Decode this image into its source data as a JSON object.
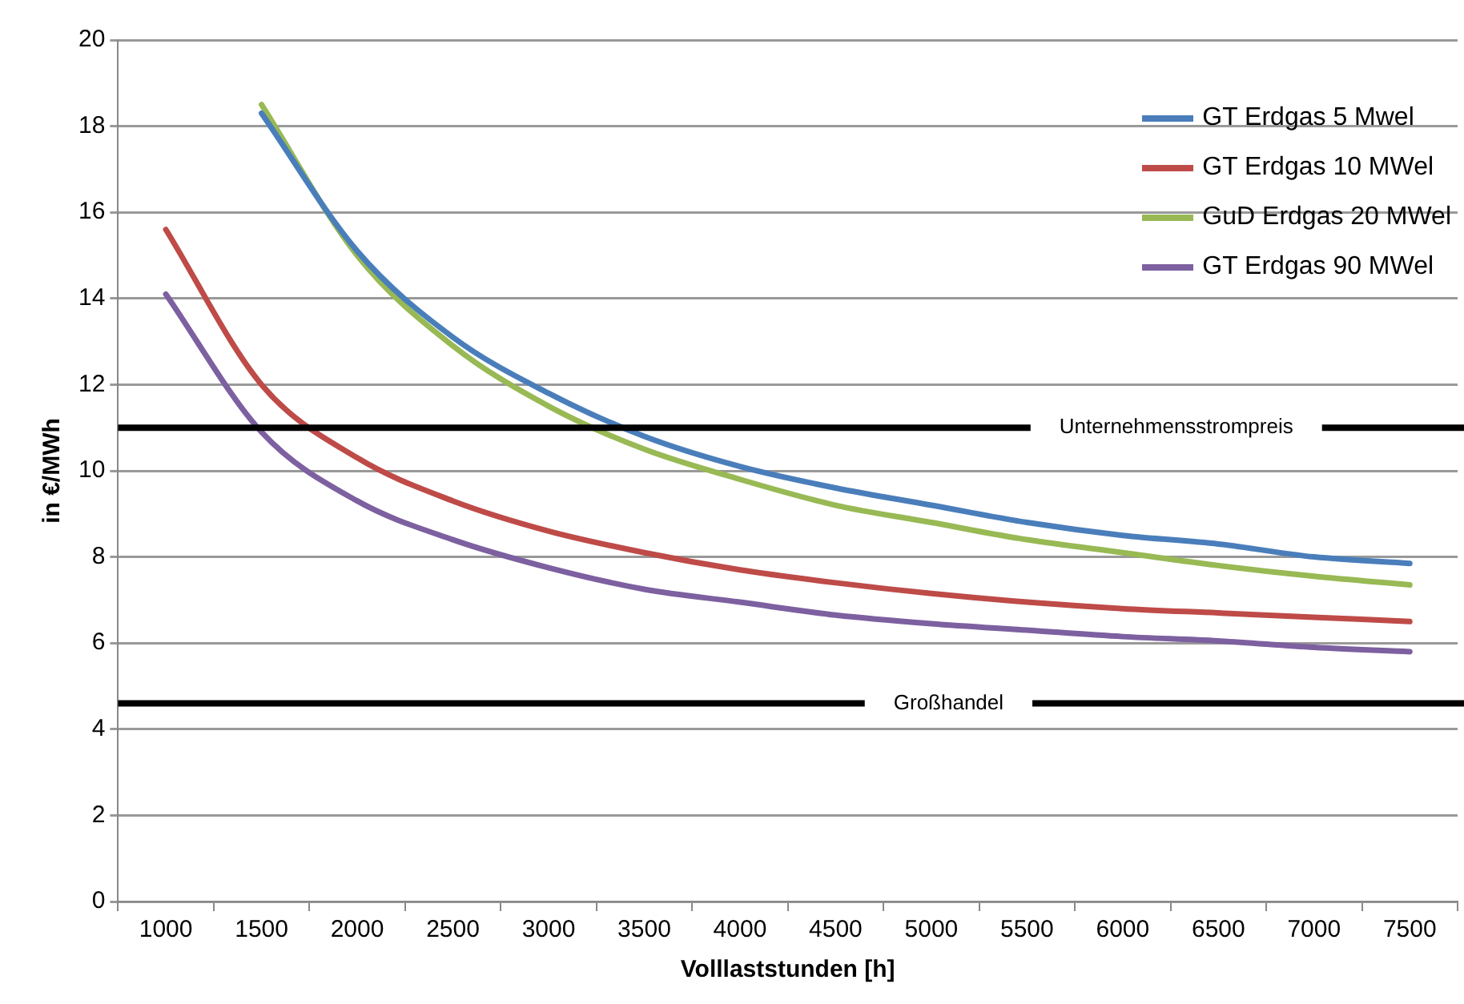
{
  "chart_data": {
    "type": "line",
    "xlabel": "Volllaststunden [h]",
    "ylabel": "in €/MWh",
    "categories": [
      "1000",
      "1500",
      "2000",
      "2500",
      "3000",
      "3500",
      "4000",
      "4500",
      "5000",
      "5500",
      "6000",
      "6500",
      "7000",
      "7500"
    ],
    "series": [
      {
        "name": "GT Erdgas 5 Mwel",
        "color": "#4a7ebb",
        "values": [
          null,
          18.3,
          15.1,
          13.1,
          11.8,
          10.8,
          10.1,
          9.6,
          9.2,
          8.8,
          8.5,
          8.3,
          8.0,
          7.85
        ]
      },
      {
        "name": "GT Erdgas 10 MWel",
        "color": "#be4b48",
        "values": [
          15.6,
          12.0,
          10.3,
          9.3,
          8.6,
          8.1,
          7.7,
          7.4,
          7.15,
          6.95,
          6.8,
          6.7,
          6.6,
          6.5
        ]
      },
      {
        "name": "GuD Erdgas 20 MWel",
        "color": "#98b954",
        "values": [
          null,
          18.5,
          15.0,
          12.9,
          11.5,
          10.5,
          9.8,
          9.2,
          8.8,
          8.4,
          8.1,
          7.8,
          7.55,
          7.35
        ]
      },
      {
        "name": "GT Erdgas 90 MWel",
        "color": "#7d60a0",
        "values": [
          14.1,
          10.9,
          9.3,
          8.4,
          7.75,
          7.25,
          6.95,
          6.65,
          6.45,
          6.3,
          6.15,
          6.05,
          5.9,
          5.8
        ]
      }
    ],
    "ylim": [
      0,
      20
    ],
    "yticks": [
      0,
      2,
      4,
      6,
      8,
      10,
      12,
      14,
      16,
      18,
      20
    ],
    "grid": "y",
    "legend": "top right",
    "marker": "none",
    "line_style": "solid",
    "ref_lines": [
      {
        "axis": "y",
        "value": 11,
        "label": "Unternehmensstrompreis",
        "color": "#000000"
      },
      {
        "axis": "y",
        "value": 4.6,
        "label": "Großhandel",
        "color": "#000000"
      }
    ]
  }
}
